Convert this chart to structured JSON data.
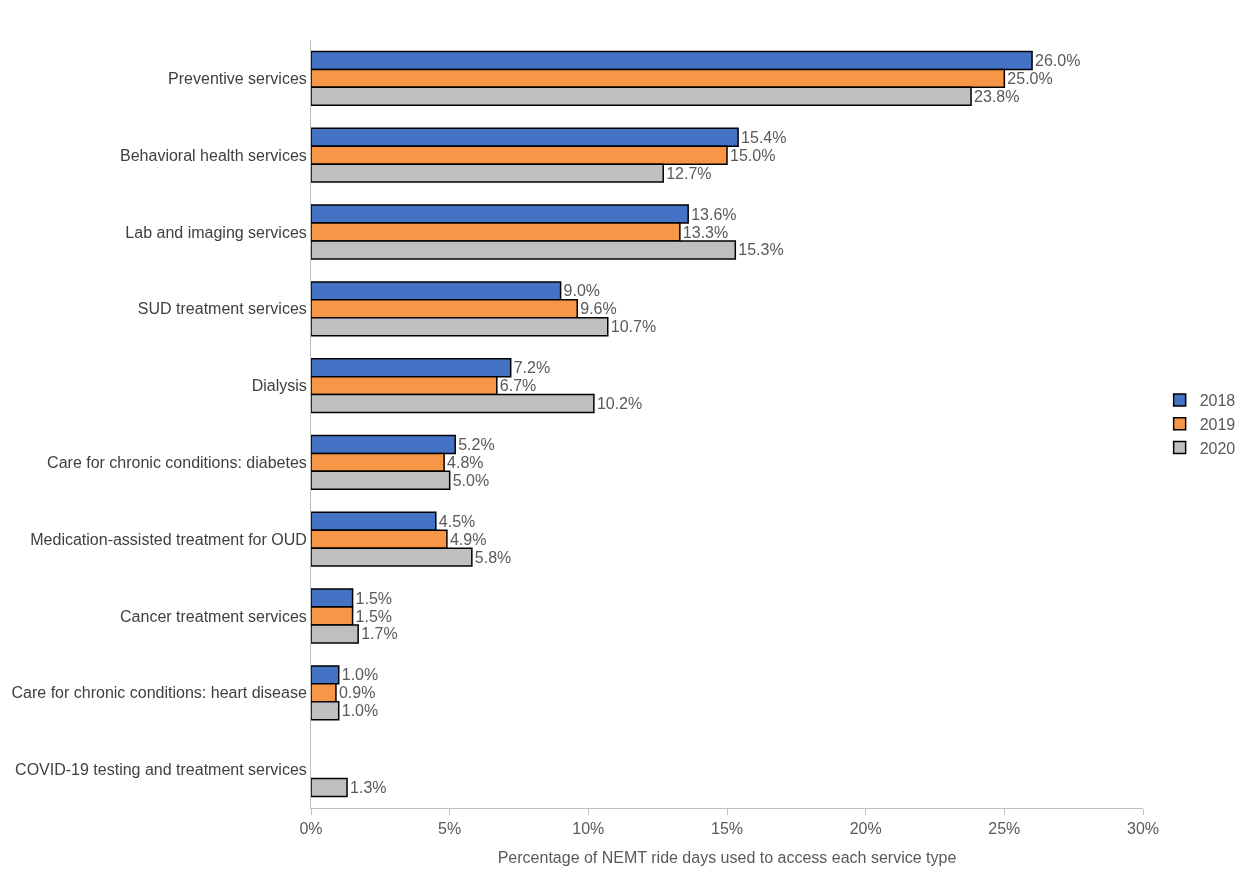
{
  "chart_data": {
    "type": "bar",
    "orientation": "horizontal",
    "xlabel": "Percentage of NEMT ride days used to access each service type",
    "categories": [
      "Preventive services",
      "Behavioral health services",
      "Lab and imaging services",
      "SUD treatment services",
      "Dialysis",
      "Care for chronic conditions: diabetes",
      "Medication-assisted treatment for OUD",
      "Cancer treatment services",
      "Care for chronic conditions: heart disease",
      "COVID-19 testing and treatment services"
    ],
    "series": [
      {
        "name": "2018",
        "color": "#4472c4",
        "values": [
          26.0,
          15.4,
          13.6,
          9.0,
          7.2,
          5.2,
          4.5,
          1.5,
          1.0,
          null
        ],
        "value_labels": [
          "26.0%",
          "15.4%",
          "13.6%",
          "9.0%",
          "7.2%",
          "5.2%",
          "4.5%",
          "1.5%",
          "1.0%",
          null
        ]
      },
      {
        "name": "2019",
        "color": "#f79646",
        "values": [
          25.0,
          15.0,
          13.3,
          9.6,
          6.7,
          4.8,
          4.9,
          1.5,
          0.9,
          null
        ],
        "value_labels": [
          "25.0%",
          "15.0%",
          "13.3%",
          "9.6%",
          "6.7%",
          "4.8%",
          "4.9%",
          "1.5%",
          "0.9%",
          null
        ]
      },
      {
        "name": "2020",
        "color": "#bfbfbf",
        "values": [
          23.8,
          12.7,
          15.3,
          10.7,
          10.2,
          5.0,
          5.8,
          1.7,
          1.0,
          1.3
        ],
        "value_labels": [
          "23.8%",
          "12.7%",
          "15.3%",
          "10.7%",
          "10.2%",
          "5.0%",
          "5.8%",
          "1.7%",
          "1.0%",
          "1.3%"
        ]
      }
    ],
    "xlim": [
      0,
      30
    ],
    "xticks": [
      {
        "value": 0,
        "label": "0%"
      },
      {
        "value": 5,
        "label": "5%"
      },
      {
        "value": 10,
        "label": "10%"
      },
      {
        "value": 15,
        "label": "15%"
      },
      {
        "value": 20,
        "label": "20%"
      },
      {
        "value": 25,
        "label": "25%"
      },
      {
        "value": 30,
        "label": "30%"
      }
    ],
    "legend": "right",
    "grid": false
  }
}
